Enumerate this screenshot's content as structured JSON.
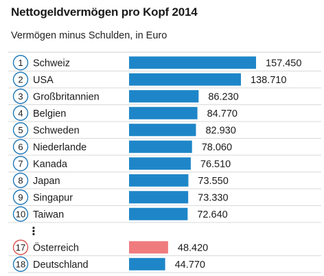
{
  "chart_data": {
    "type": "bar",
    "orientation": "horizontal",
    "title": "Nettogeldvermögen pro Kopf 2014",
    "subtitle": "Vermögen minus Schulden, in Euro",
    "xlabel": "",
    "ylabel": "",
    "xlim": [
      0,
      160000
    ],
    "grid": false,
    "legend": "none",
    "colors": {
      "default": "#1e86c8",
      "highlight": "#f07b7e"
    },
    "ellipsis": "⋮",
    "rows": [
      {
        "rank": "1",
        "name": "Schweiz",
        "value": 157450,
        "label": "157.450",
        "highlight": false
      },
      {
        "rank": "2",
        "name": "USA",
        "value": 138710,
        "label": "138.710",
        "highlight": false
      },
      {
        "rank": "3",
        "name": "Großbritannien",
        "value": 86230,
        "label": "86.230",
        "highlight": false
      },
      {
        "rank": "4",
        "name": "Belgien",
        "value": 84770,
        "label": "84.770",
        "highlight": false
      },
      {
        "rank": "5",
        "name": "Schweden",
        "value": 82930,
        "label": "82.930",
        "highlight": false
      },
      {
        "rank": "6",
        "name": "Niederlande",
        "value": 78060,
        "label": "78.060",
        "highlight": false
      },
      {
        "rank": "7",
        "name": "Kanada",
        "value": 76510,
        "label": "76.510",
        "highlight": false
      },
      {
        "rank": "8",
        "name": "Japan",
        "value": 73550,
        "label": "73.550",
        "highlight": false
      },
      {
        "rank": "9",
        "name": "Singapur",
        "value": 73330,
        "label": "73.330",
        "highlight": false
      },
      {
        "rank": "10",
        "name": "Taiwan",
        "value": 72640,
        "label": "72.640",
        "highlight": false
      },
      {
        "rank": "17",
        "name": "Österreich",
        "value": 48420,
        "label": "48.420",
        "highlight": true
      },
      {
        "rank": "18",
        "name": "Deutschland",
        "value": 44770,
        "label": "44.770",
        "highlight": false
      }
    ]
  }
}
